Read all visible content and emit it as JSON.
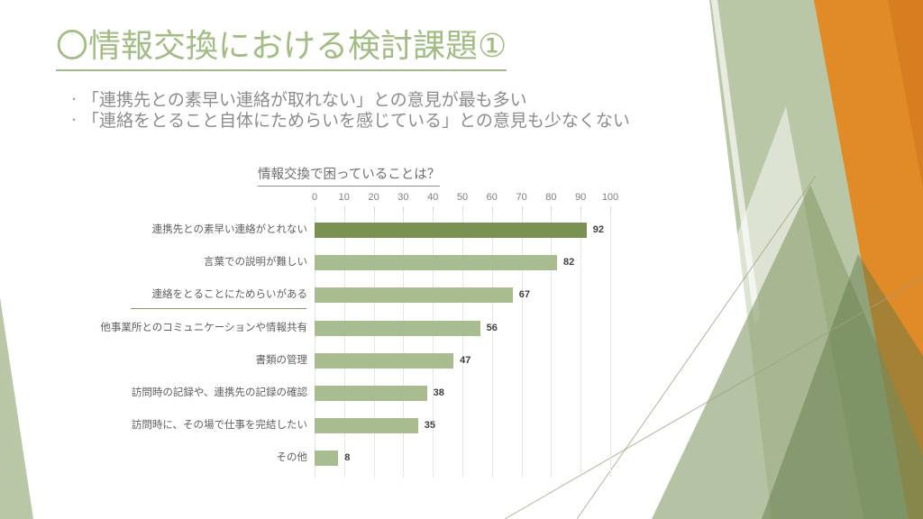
{
  "slide": {
    "title": "〇情報交換における検討課題①",
    "bullets": [
      {
        "marker": "・",
        "text": "「連携先との素早い連絡が取れない」との意見が最も多い"
      },
      {
        "marker": "・",
        "text": "「連絡をとること自体にためらいを感じている」との意見も少なくない"
      }
    ]
  },
  "chart_data": {
    "type": "bar",
    "orientation": "horizontal",
    "title": "情報交換で困っていることは？",
    "categories": [
      "連携先との素早い連絡がとれない",
      "言葉での説明が難しい",
      "連絡をとることにためらいがある",
      "他事業所とのコミュニケーションや情報共有",
      "書類の管理",
      "訪問時の記録や、連携先の記録の確認",
      "訪問時に、その場で仕事を完結したい",
      "その他"
    ],
    "values": [
      92,
      82,
      67,
      56,
      47,
      38,
      35,
      8
    ],
    "xlabel": "",
    "ylabel": "",
    "xlim": [
      0,
      100
    ],
    "x_ticks": [
      0,
      10,
      20,
      30,
      40,
      50,
      60,
      70,
      80,
      90,
      100
    ],
    "grid": true,
    "legend": false,
    "axis_position": "top",
    "highlight_index": 0,
    "underlined_category_index": 2
  },
  "colors": {
    "title_green": "#a2bc84",
    "bar_dark": "#7a9154",
    "bar_light": "#a9bc8f",
    "bullet_text": "#8c8c8c",
    "chart_title_text": "#6e6e6e",
    "axis_text": "#7f7f7f",
    "value_text": "#404040",
    "gridline": "#e5e8e0",
    "decor_orange": "#e18a28",
    "decor_orange_dark": "#d57d1e",
    "decor_sage": "#bac7a6",
    "decor_green_mid": "#879c6a",
    "decor_green_deep": "#5d7544",
    "decor_line": "#a79f82"
  }
}
